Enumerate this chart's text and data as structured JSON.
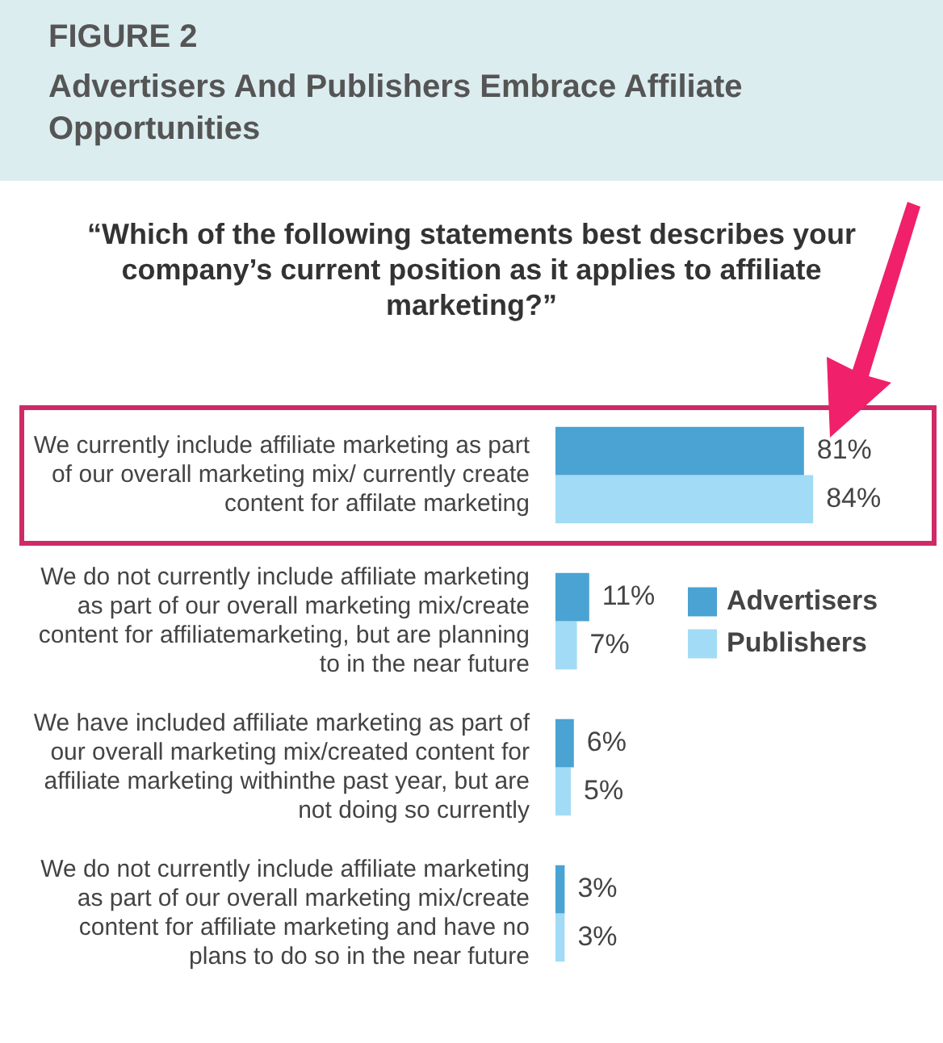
{
  "chart_data": {
    "type": "bar",
    "orientation": "horizontal",
    "title": "Advertisers And Publishers Embrace Affiliate Opportunities",
    "subtitle": "“Which of the following statements best describes your company’s current position as it applies to affiliate marketing?”",
    "annotations": [
      "FIGURE 2"
    ],
    "categories": [
      "We currently include affiliate marketing as part of our overall marketing mix/ currently create content for affilate marketing",
      "We do not currently include affiliate marketing as part of our overall marketing mix/create content for affiliatemarketing, but are planning to in the near future",
      "We have included affiliate marketing as part of our overall marketing mix/created content for affiliate marketing withinthe past year, but are not doing so currently",
      "We do not currently include affiliate marketing as part of our overall marketing mix/create content for affiliate marketing and have no plans to do so in the near future"
    ],
    "series": [
      {
        "name": "Advertisers",
        "color": "#4aa3d2",
        "values": [
          81,
          11,
          6,
          3
        ],
        "value_labels": [
          "81%",
          "11%",
          "6%",
          "3%"
        ]
      },
      {
        "name": "Publishers",
        "color": "#a2dbf5",
        "values": [
          84,
          7,
          5,
          3
        ],
        "value_labels": [
          "84%",
          "7%",
          "5%",
          "3%"
        ]
      }
    ],
    "legend": "right"
  }
}
